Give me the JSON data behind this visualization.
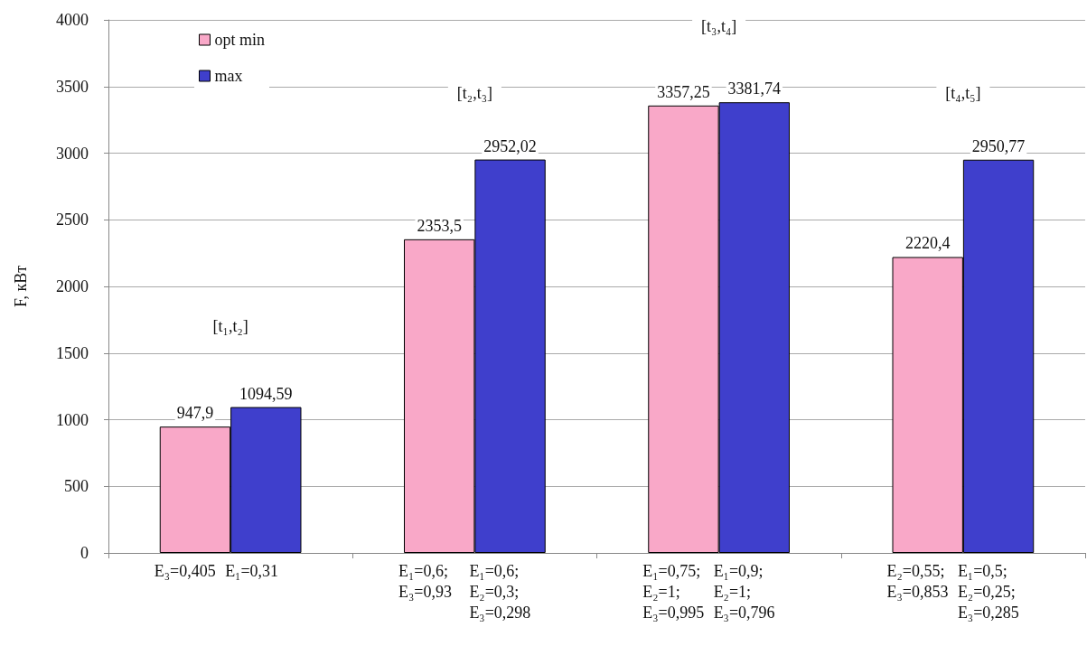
{
  "chart_data": {
    "type": "bar",
    "ylabel": "F, кВт",
    "categories": [
      null,
      null,
      null,
      null
    ],
    "series": [
      {
        "name": "opt min",
        "color": "#f9a8c8",
        "values": [
          947.9,
          2353.5,
          3357.25,
          2220.4
        ],
        "value_labels": [
          "947,9",
          "2353,5",
          "3357,25",
          "2220,4"
        ]
      },
      {
        "name": "max",
        "color": "#3f3fcc",
        "values": [
          1094.59,
          2952.02,
          3381.74,
          2950.77
        ],
        "value_labels": [
          "1094,59",
          "2952,02",
          "3381,74",
          "2950,77"
        ]
      }
    ],
    "ylim": [
      0,
      4000
    ],
    "yticks": [
      0,
      500,
      1000,
      1500,
      2000,
      2500,
      3000,
      3500,
      4000
    ],
    "grid": "y",
    "legend": "top left",
    "annotations": [
      "E₃=0,405",
      "E₁=0,31",
      "E₁=0,6;\nE₃=0,93",
      "E₁=0,6;\nE₂=0,3;\nE₃=0,298",
      "E₁=0,75;\nE₂=1;\nE₃=0,995",
      "E₁=0,9;\nE₂=1;\nE₃=0,796",
      "E₂=0,55;\nE₃=0,853",
      "E₁=0,5;\nE₂=0,25;\nE₃=0,285",
      "[t₁,t₂]",
      "[t₂,t₃]",
      "[t₃,t₄]",
      "[t₄,t₅]"
    ]
  }
}
